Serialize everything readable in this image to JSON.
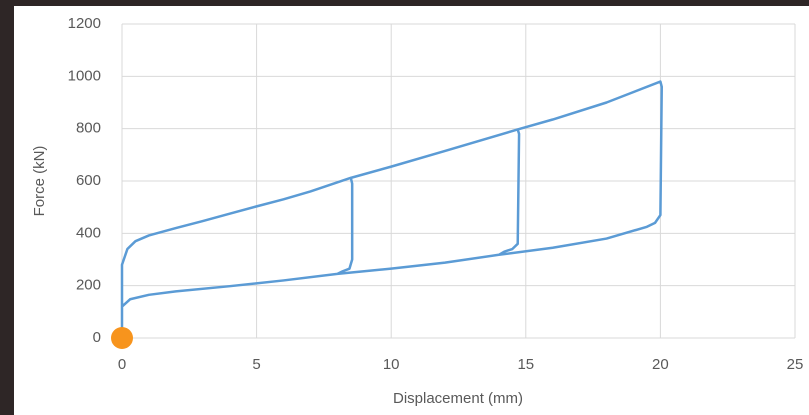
{
  "chart_data": {
    "type": "line",
    "x_label": "Displacement (mm)",
    "y_label": "Force (kN)",
    "color": "#5b9bd5",
    "x": [
      0,
      0,
      0.2,
      0.5,
      1,
      2,
      3,
      4,
      5,
      6,
      7,
      8.5,
      8.55,
      8.55,
      8.45,
      8.2,
      8,
      6,
      4,
      2,
      1,
      0.3,
      0,
      0,
      0.2,
      0.5,
      1,
      2,
      3,
      4,
      5,
      6,
      7,
      8.5,
      10,
      12,
      14.7,
      14.75,
      14.7,
      14.5,
      14.2,
      14,
      12,
      10,
      8,
      6,
      4,
      2,
      1,
      0.3,
      0,
      0,
      0.2,
      0.5,
      1,
      2,
      3,
      4,
      5,
      6,
      7,
      8.5,
      10,
      12,
      14.7,
      16,
      18,
      20,
      20.05,
      20,
      19.8,
      19.5,
      18,
      16,
      14,
      12,
      10,
      8,
      6,
      4,
      2,
      1,
      0.3,
      0
    ],
    "values": [
      0,
      280,
      340,
      370,
      392,
      420,
      447,
      475,
      503,
      530,
      560,
      612,
      590,
      300,
      265,
      255,
      245,
      220,
      198,
      178,
      165,
      148,
      120,
      280,
      340,
      370,
      392,
      420,
      447,
      475,
      503,
      530,
      560,
      612,
      655,
      715,
      797,
      780,
      360,
      340,
      330,
      318,
      288,
      265,
      245,
      220,
      198,
      178,
      165,
      148,
      120,
      280,
      340,
      370,
      392,
      420,
      447,
      475,
      503,
      530,
      560,
      612,
      655,
      715,
      797,
      835,
      900,
      980,
      960,
      470,
      440,
      425,
      380,
      345,
      318,
      288,
      265,
      245,
      220,
      198,
      178,
      165,
      148,
      120
    ],
    "marker": {
      "x": 0,
      "y": 0,
      "color": "#f7941d"
    },
    "xlim": [
      0,
      25
    ],
    "xticks": [
      0,
      5,
      10,
      15,
      20,
      25
    ],
    "ylim": [
      0,
      1200
    ],
    "yticks": [
      0,
      200,
      400,
      600,
      800,
      1000,
      1200
    ],
    "grid": true
  }
}
